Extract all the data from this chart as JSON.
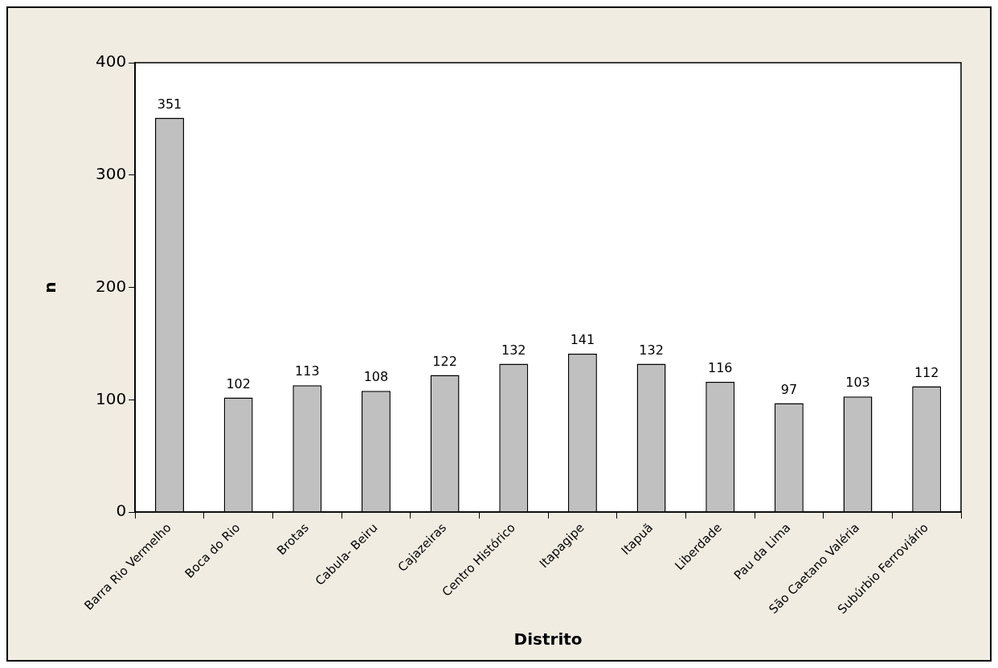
{
  "chart_data": {
    "type": "bar",
    "xlabel": "Distrito",
    "ylabel": "n",
    "categories": [
      "Barra Rio Vermelho",
      "Boca do Rio",
      "Brotas",
      "Cabula- Beiru",
      "Cajazeiras",
      "Centro Histórico",
      "Itapagipe",
      "Itapuã",
      "Liberdade",
      "Pau da Lima",
      "São Caetano Valéria",
      "Subúrbio Ferroviário"
    ],
    "values": [
      351,
      102,
      113,
      108,
      122,
      132,
      141,
      132,
      116,
      97,
      103,
      112
    ],
    "color": "#c0c0c0",
    "ylim": [
      0,
      400
    ],
    "yticks": [
      0,
      100,
      200,
      300,
      400
    ],
    "grid": false,
    "legend": false,
    "data_labels": true
  }
}
